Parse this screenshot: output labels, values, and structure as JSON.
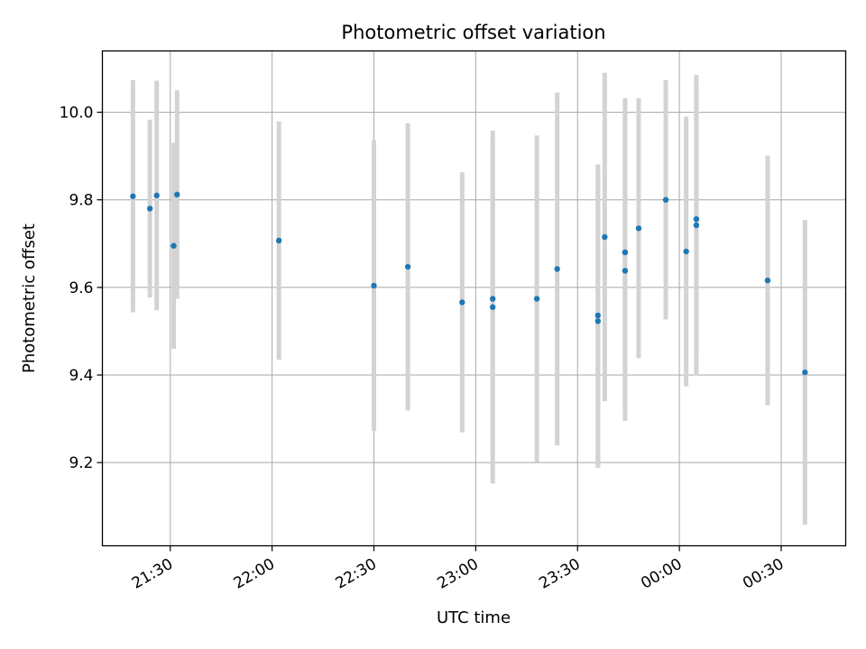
{
  "chart_data": {
    "type": "scatter",
    "title": "Photometric offset variation",
    "xlabel": "UTC time",
    "ylabel": "Photometric offset",
    "x_axis": "time",
    "x_ticks": [
      "21:30",
      "22:00",
      "22:30",
      "23:00",
      "23:30",
      "00:00",
      "00:30"
    ],
    "y_ticks": [
      "9.2",
      "9.4",
      "9.6",
      "9.8",
      "10.0"
    ],
    "xlim": [
      "21:10",
      "00:49"
    ],
    "ylim": [
      9.01,
      10.14
    ],
    "grid": true,
    "point_color": "#1f77b4",
    "errorbar_color": "#d3d3d3",
    "points": [
      {
        "t": "21:19",
        "y": 9.808,
        "err": 0.265
      },
      {
        "t": "21:24",
        "y": 9.78,
        "err": 0.203
      },
      {
        "t": "21:26",
        "y": 9.81,
        "err": 0.262
      },
      {
        "t": "21:31",
        "y": 9.695,
        "err": 0.235
      },
      {
        "t": "21:32",
        "y": 9.812,
        "err": 0.238
      },
      {
        "t": "22:02",
        "y": 9.707,
        "err": 0.272
      },
      {
        "t": "22:30",
        "y": 9.604,
        "err": 0.332
      },
      {
        "t": "22:40",
        "y": 9.647,
        "err": 0.328
      },
      {
        "t": "22:56",
        "y": 9.566,
        "err": 0.297
      },
      {
        "t": "23:05",
        "y": 9.555,
        "err": 0.403
      },
      {
        "t": "23:05",
        "y": 9.574,
        "err": 0.352
      },
      {
        "t": "23:18",
        "y": 9.574,
        "err": 0.373
      },
      {
        "t": "23:24",
        "y": 9.642,
        "err": 0.403
      },
      {
        "t": "23:36",
        "y": 9.536,
        "err": 0.345
      },
      {
        "t": "23:36",
        "y": 9.523,
        "err": 0.335
      },
      {
        "t": "23:38",
        "y": 9.715,
        "err": 0.375
      },
      {
        "t": "23:44",
        "y": 9.68,
        "err": 0.352
      },
      {
        "t": "23:44",
        "y": 9.638,
        "err": 0.343
      },
      {
        "t": "23:44",
        "y": 9.68,
        "err": 0.35
      },
      {
        "t": "23:48",
        "y": 9.735,
        "err": 0.297
      },
      {
        "t": "23:56",
        "y": 9.8,
        "err": 0.273
      },
      {
        "t": "00:02",
        "y": 9.682,
        "err": 0.308
      },
      {
        "t": "00:05",
        "y": 9.742,
        "err": 0.343
      },
      {
        "t": "00:05",
        "y": 9.756,
        "err": 0.308
      },
      {
        "t": "00:26",
        "y": 9.616,
        "err": 0.285
      },
      {
        "t": "00:37",
        "y": 9.406,
        "err": 0.348
      }
    ]
  }
}
